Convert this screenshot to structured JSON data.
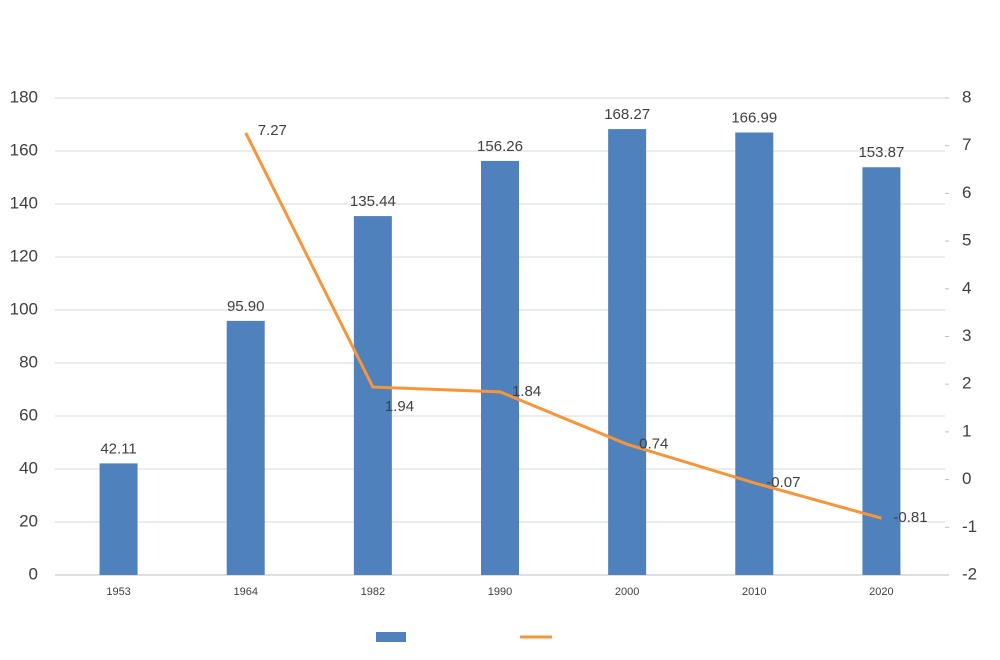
{
  "chart_data": {
    "type": "bar_line",
    "categories": [
      "1953",
      "1964",
      "1982",
      "1990",
      "2000",
      "2010",
      "2020"
    ],
    "series": [
      {
        "type": "bar",
        "color": "#4f81bd",
        "values": [
          42.11,
          95.9,
          135.44,
          156.26,
          168.27,
          166.99,
          153.87
        ],
        "value_labels": [
          "42.11",
          "95.90",
          "135.44",
          "156.26",
          "168.27",
          "166.99",
          "153.87"
        ]
      },
      {
        "type": "line",
        "axis": "y2",
        "color": "#f7953b",
        "values": [
          null,
          7.27,
          1.94,
          1.84,
          0.74,
          -0.07,
          -0.81
        ]
      }
    ],
    "ylim": [
      0,
      180
    ],
    "yticks": [
      0,
      20,
      40,
      60,
      80,
      100,
      120,
      140,
      160,
      180
    ],
    "y2lim": [
      -2,
      8
    ],
    "y2ticks": [
      -2,
      -1,
      0,
      1,
      2,
      3,
      4,
      5,
      6,
      7,
      8
    ],
    "grid": true
  }
}
